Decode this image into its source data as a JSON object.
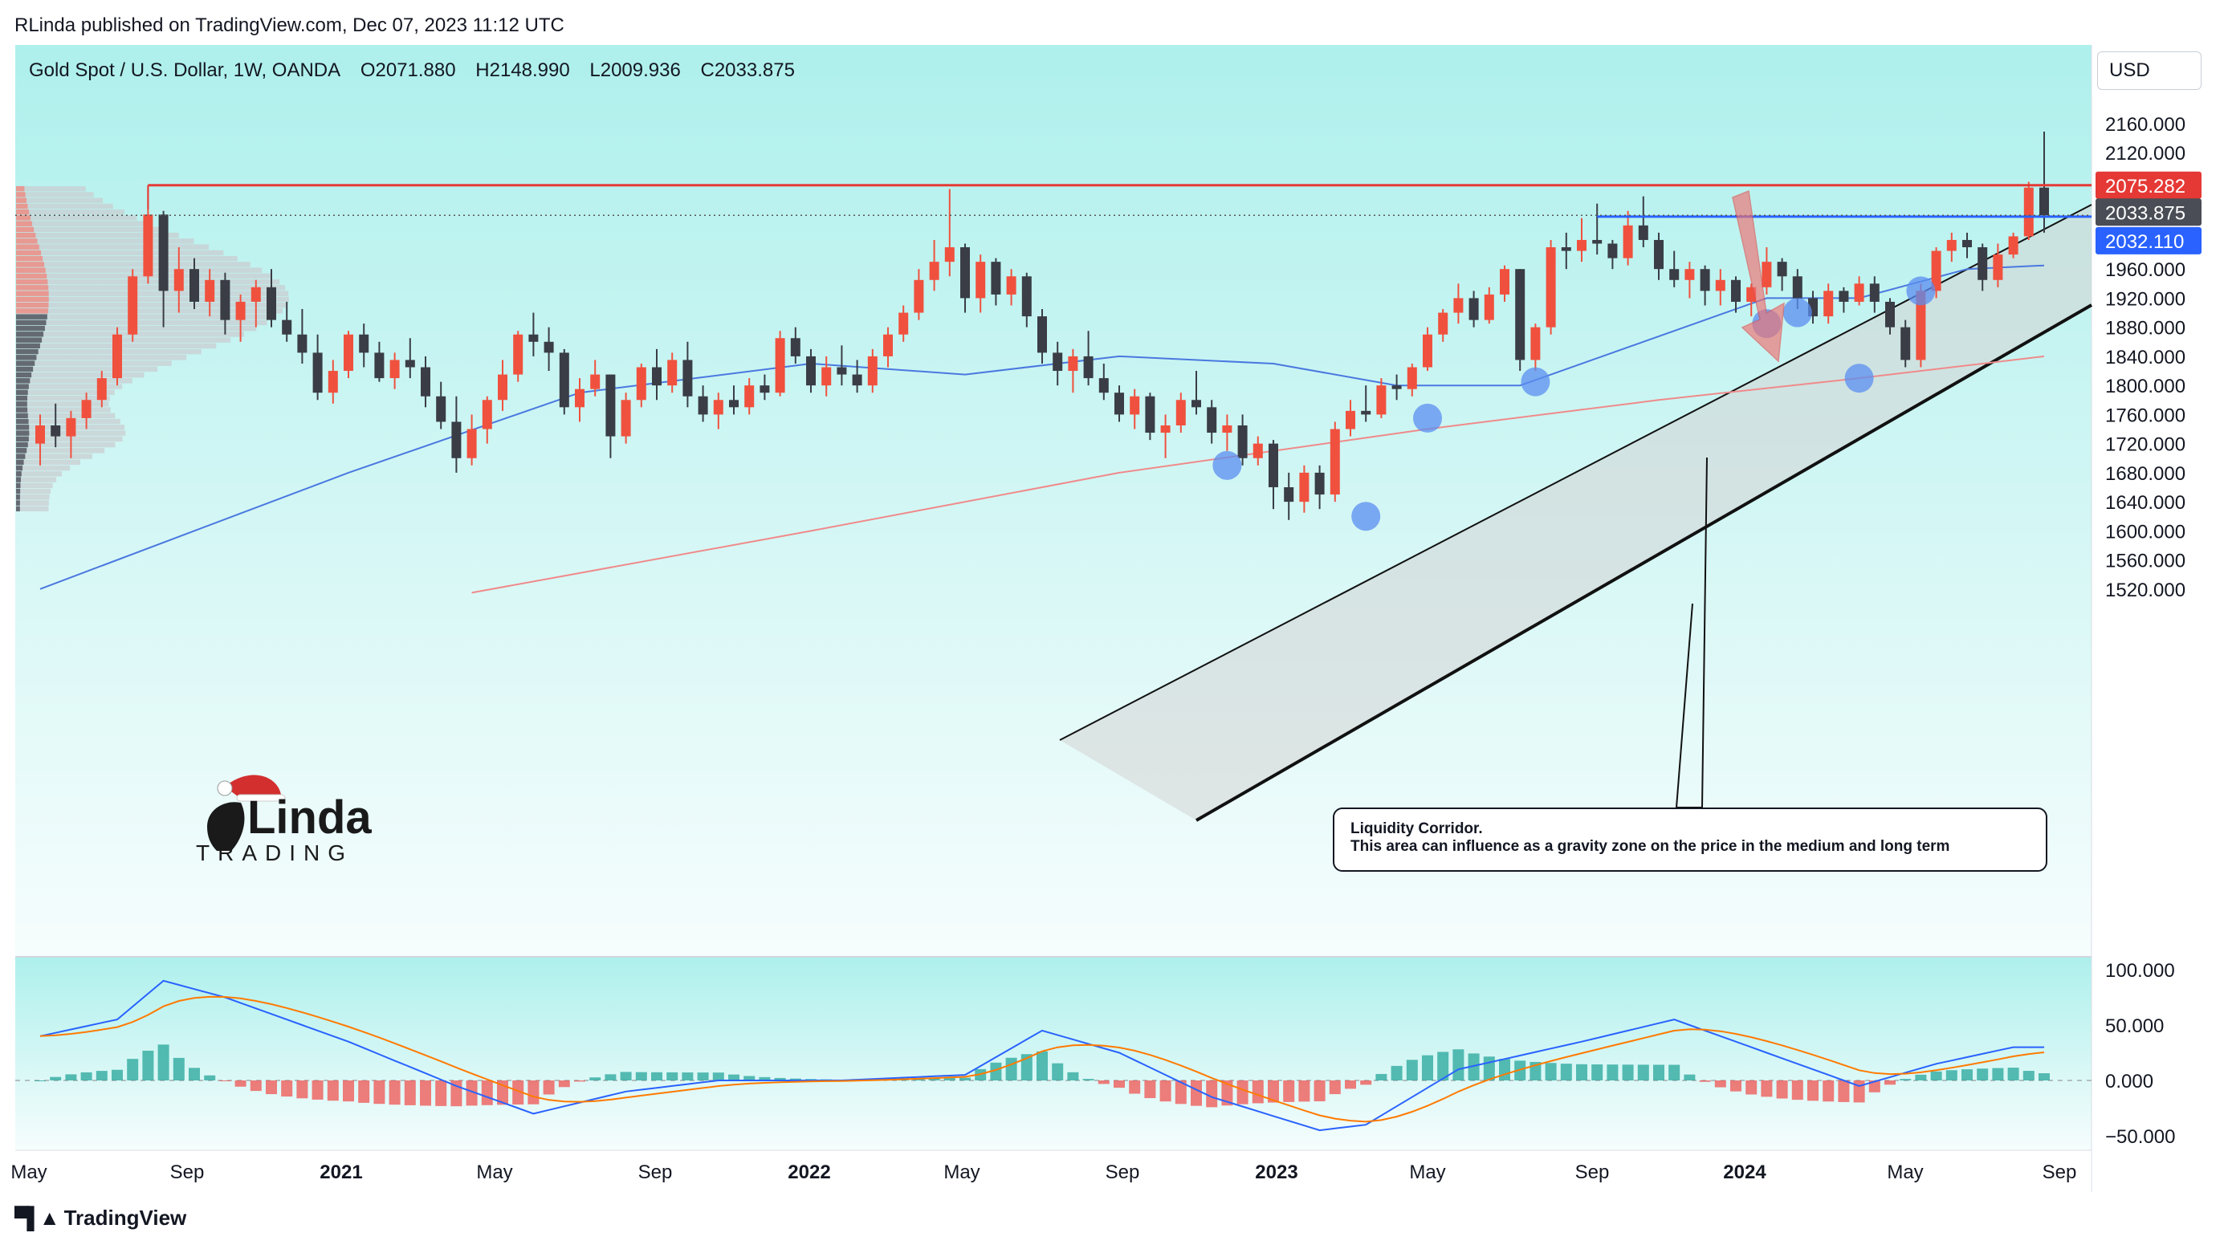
{
  "header": {
    "published": "RLinda published on TradingView.com, Dec 07, 2023 11:12 UTC"
  },
  "legend": {
    "symbol": "Gold Spot / U.S. Dollar, 1W, OANDA",
    "open": "O2071.880",
    "high": "H2148.990",
    "low": "L2009.936",
    "close": "C2033.875"
  },
  "currency_button": "USD",
  "price_labels": {
    "resistance": "2075.282",
    "last_price": "2033.875",
    "blue_level": "2032.110"
  },
  "annotation": {
    "title": "Liquidity Corridor.",
    "text": "This area can influence as a gravity zone on the price in the medium and long term"
  },
  "brand": {
    "top": "Linda",
    "bottom": "TRADING"
  },
  "footer": "TradingView",
  "colors": {
    "background_top": "#aff0ec",
    "bull": "#f0513e",
    "bear": "#3a3d45",
    "resistance": "#e53935",
    "blue_level": "#2962ff",
    "ma_fast": "#4a78e0",
    "ma_slow": "#f08a8a",
    "macd": "#2962ff",
    "signal": "#ff7a00",
    "hist_pos": "#26a69a",
    "hist_neg": "#ef5350"
  },
  "chart_data": {
    "type": "candlestick",
    "price_axis": {
      "ticks": [
        "2160.000",
        "2120.000",
        "2080.000",
        "2040.000",
        "2000.000",
        "1960.000",
        "1920.000",
        "1880.000",
        "1840.000",
        "1800.000",
        "1760.000",
        "1720.000",
        "1680.000",
        "1640.000",
        "1600.000",
        "1560.000",
        "1520.000"
      ],
      "range": [
        1515,
        2180
      ]
    },
    "time_axis": {
      "labels": [
        "May",
        "Sep",
        "2021",
        "May",
        "Sep",
        "2022",
        "May",
        "Sep",
        "2023",
        "May",
        "Sep",
        "2024",
        "May",
        "Sep"
      ],
      "bold": [
        false,
        false,
        true,
        false,
        false,
        true,
        false,
        false,
        true,
        false,
        false,
        true,
        false,
        false
      ]
    },
    "oscillator": {
      "ticks": [
        "100.000",
        "50.000",
        "0.000",
        "−50.000"
      ],
      "range": [
        -55,
        105
      ]
    },
    "candles_ohlc": [
      [
        1720,
        1760,
        1690,
        1745
      ],
      [
        1745,
        1775,
        1715,
        1730
      ],
      [
        1730,
        1765,
        1700,
        1755
      ],
      [
        1755,
        1790,
        1740,
        1780
      ],
      [
        1780,
        1820,
        1770,
        1810
      ],
      [
        1810,
        1880,
        1800,
        1870
      ],
      [
        1870,
        1960,
        1860,
        1950
      ],
      [
        1950,
        2075,
        1940,
        2035
      ],
      [
        2035,
        2040,
        1880,
        1930
      ],
      [
        1930,
        1990,
        1900,
        1960
      ],
      [
        1960,
        1975,
        1905,
        1915
      ],
      [
        1915,
        1960,
        1895,
        1945
      ],
      [
        1945,
        1955,
        1870,
        1890
      ],
      [
        1890,
        1925,
        1860,
        1915
      ],
      [
        1915,
        1945,
        1880,
        1935
      ],
      [
        1935,
        1960,
        1880,
        1890
      ],
      [
        1890,
        1915,
        1860,
        1870
      ],
      [
        1870,
        1905,
        1830,
        1845
      ],
      [
        1845,
        1870,
        1780,
        1790
      ],
      [
        1790,
        1835,
        1775,
        1820
      ],
      [
        1820,
        1875,
        1810,
        1870
      ],
      [
        1870,
        1885,
        1825,
        1845
      ],
      [
        1845,
        1860,
        1805,
        1810
      ],
      [
        1810,
        1845,
        1795,
        1835
      ],
      [
        1835,
        1865,
        1810,
        1825
      ],
      [
        1825,
        1840,
        1770,
        1785
      ],
      [
        1785,
        1805,
        1740,
        1750
      ],
      [
        1750,
        1785,
        1680,
        1700
      ],
      [
        1700,
        1760,
        1690,
        1740
      ],
      [
        1740,
        1785,
        1720,
        1780
      ],
      [
        1780,
        1835,
        1765,
        1815
      ],
      [
        1815,
        1875,
        1805,
        1870
      ],
      [
        1870,
        1900,
        1840,
        1860
      ],
      [
        1860,
        1880,
        1820,
        1845
      ],
      [
        1845,
        1850,
        1760,
        1770
      ],
      [
        1770,
        1810,
        1750,
        1795
      ],
      [
        1795,
        1835,
        1785,
        1815
      ],
      [
        1815,
        1815,
        1700,
        1730
      ],
      [
        1730,
        1790,
        1720,
        1780
      ],
      [
        1780,
        1830,
        1770,
        1825
      ],
      [
        1825,
        1850,
        1780,
        1800
      ],
      [
        1800,
        1845,
        1790,
        1835
      ],
      [
        1835,
        1860,
        1770,
        1785
      ],
      [
        1785,
        1800,
        1750,
        1760
      ],
      [
        1760,
        1790,
        1740,
        1780
      ],
      [
        1780,
        1800,
        1760,
        1770
      ],
      [
        1770,
        1810,
        1760,
        1800
      ],
      [
        1800,
        1815,
        1780,
        1790
      ],
      [
        1790,
        1875,
        1785,
        1865
      ],
      [
        1865,
        1880,
        1830,
        1840
      ],
      [
        1840,
        1850,
        1790,
        1800
      ],
      [
        1800,
        1840,
        1785,
        1825
      ],
      [
        1825,
        1855,
        1800,
        1815
      ],
      [
        1815,
        1835,
        1790,
        1800
      ],
      [
        1800,
        1850,
        1790,
        1840
      ],
      [
        1840,
        1880,
        1825,
        1870
      ],
      [
        1870,
        1910,
        1860,
        1900
      ],
      [
        1900,
        1960,
        1890,
        1945
      ],
      [
        1945,
        2000,
        1930,
        1970
      ],
      [
        1970,
        2070,
        1950,
        1990
      ],
      [
        1990,
        1995,
        1900,
        1920
      ],
      [
        1920,
        1980,
        1900,
        1970
      ],
      [
        1970,
        1975,
        1910,
        1925
      ],
      [
        1925,
        1960,
        1910,
        1950
      ],
      [
        1950,
        1955,
        1880,
        1895
      ],
      [
        1895,
        1905,
        1830,
        1845
      ],
      [
        1845,
        1860,
        1800,
        1820
      ],
      [
        1820,
        1850,
        1790,
        1840
      ],
      [
        1840,
        1875,
        1800,
        1810
      ],
      [
        1810,
        1830,
        1780,
        1790
      ],
      [
        1790,
        1800,
        1750,
        1760
      ],
      [
        1760,
        1795,
        1740,
        1785
      ],
      [
        1785,
        1790,
        1725,
        1735
      ],
      [
        1735,
        1760,
        1700,
        1745
      ],
      [
        1745,
        1790,
        1735,
        1780
      ],
      [
        1780,
        1820,
        1760,
        1770
      ],
      [
        1770,
        1780,
        1720,
        1735
      ],
      [
        1735,
        1760,
        1710,
        1745
      ],
      [
        1745,
        1760,
        1690,
        1700
      ],
      [
        1700,
        1730,
        1690,
        1720
      ],
      [
        1720,
        1725,
        1630,
        1660
      ],
      [
        1660,
        1680,
        1615,
        1640
      ],
      [
        1640,
        1690,
        1625,
        1680
      ],
      [
        1680,
        1690,
        1630,
        1650
      ],
      [
        1650,
        1750,
        1640,
        1740
      ],
      [
        1740,
        1780,
        1730,
        1765
      ],
      [
        1765,
        1800,
        1750,
        1760
      ],
      [
        1760,
        1810,
        1755,
        1800
      ],
      [
        1800,
        1815,
        1780,
        1795
      ],
      [
        1795,
        1830,
        1785,
        1825
      ],
      [
        1825,
        1880,
        1820,
        1870
      ],
      [
        1870,
        1905,
        1860,
        1900
      ],
      [
        1900,
        1940,
        1885,
        1920
      ],
      [
        1920,
        1930,
        1880,
        1890
      ],
      [
        1890,
        1935,
        1885,
        1925
      ],
      [
        1925,
        1965,
        1915,
        1960
      ],
      [
        1960,
        1960,
        1820,
        1835
      ],
      [
        1835,
        1885,
        1820,
        1880
      ],
      [
        1880,
        2000,
        1870,
        1990
      ],
      [
        1990,
        2010,
        1960,
        1985
      ],
      [
        1985,
        2030,
        1970,
        2000
      ],
      [
        2000,
        2050,
        1980,
        1995
      ],
      [
        1995,
        2000,
        1960,
        1975
      ],
      [
        1975,
        2040,
        1965,
        2020
      ],
      [
        2020,
        2060,
        1990,
        2000
      ],
      [
        2000,
        2010,
        1945,
        1960
      ],
      [
        1960,
        1985,
        1935,
        1945
      ],
      [
        1945,
        1970,
        1920,
        1960
      ],
      [
        1960,
        1965,
        1910,
        1930
      ],
      [
        1930,
        1960,
        1910,
        1945
      ],
      [
        1945,
        1950,
        1900,
        1915
      ],
      [
        1915,
        1940,
        1895,
        1935
      ],
      [
        1935,
        1990,
        1925,
        1970
      ],
      [
        1970,
        1975,
        1930,
        1950
      ],
      [
        1950,
        1960,
        1905,
        1920
      ],
      [
        1920,
        1930,
        1885,
        1895
      ],
      [
        1895,
        1940,
        1885,
        1930
      ],
      [
        1930,
        1935,
        1900,
        1915
      ],
      [
        1915,
        1950,
        1910,
        1940
      ],
      [
        1940,
        1950,
        1900,
        1915
      ],
      [
        1915,
        1920,
        1870,
        1880
      ],
      [
        1880,
        1890,
        1825,
        1835
      ],
      [
        1835,
        1940,
        1825,
        1930
      ],
      [
        1930,
        1990,
        1920,
        1985
      ],
      [
        1985,
        2010,
        1970,
        2000
      ],
      [
        2000,
        2010,
        1975,
        1990
      ],
      [
        1990,
        1995,
        1930,
        1945
      ],
      [
        1945,
        1995,
        1935,
        1980
      ],
      [
        1980,
        2010,
        1975,
        2005
      ],
      [
        2005,
        2080,
        2000,
        2072
      ],
      [
        2072,
        2149,
        2010,
        2034
      ]
    ],
    "moving_averages": [
      {
        "name": "MA fast",
        "points": [
          [
            0,
            1520
          ],
          [
            20,
            1680
          ],
          [
            35,
            1790
          ],
          [
            50,
            1830
          ],
          [
            60,
            1815
          ],
          [
            70,
            1840
          ],
          [
            80,
            1830
          ],
          [
            88,
            1800
          ],
          [
            96,
            1800
          ],
          [
            104,
            1860
          ],
          [
            112,
            1920
          ],
          [
            118,
            1920
          ],
          [
            125,
            1960
          ],
          [
            130,
            1965
          ]
        ]
      },
      {
        "name": "MA slow",
        "points": [
          [
            28,
            1515
          ],
          [
            50,
            1600
          ],
          [
            70,
            1680
          ],
          [
            90,
            1740
          ],
          [
            105,
            1780
          ],
          [
            118,
            1810
          ],
          [
            130,
            1840
          ]
        ]
      }
    ]
  }
}
